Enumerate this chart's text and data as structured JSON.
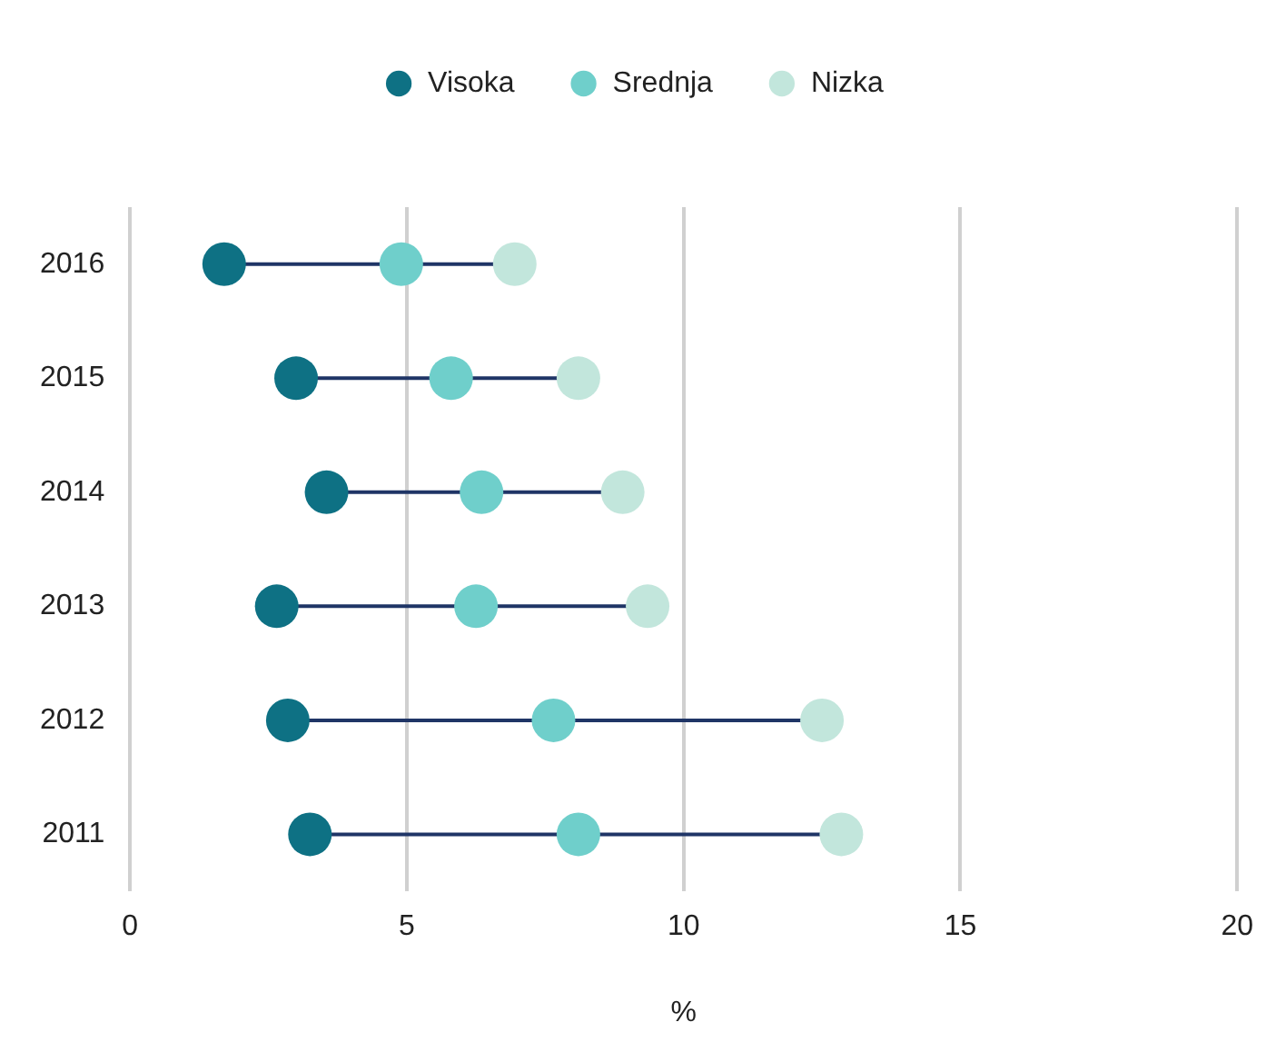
{
  "chart_data": {
    "type": "scatter",
    "orientation": "horizontal",
    "xlabel": "%",
    "categories": [
      "2016",
      "2015",
      "2014",
      "2013",
      "2012",
      "2011"
    ],
    "series": [
      {
        "name": "Visoka",
        "color": "#0e7184",
        "values": [
          1.7,
          3.0,
          3.55,
          2.65,
          2.85,
          3.25
        ]
      },
      {
        "name": "Srednja",
        "color": "#6fcfcb",
        "values": [
          4.9,
          5.8,
          6.35,
          6.25,
          7.65,
          8.1
        ]
      },
      {
        "name": "Nizka",
        "color": "#c2e6dc",
        "values": [
          6.95,
          8.1,
          8.9,
          9.35,
          12.5,
          12.85
        ]
      }
    ],
    "xlim": [
      0,
      20
    ],
    "xticks": [
      0,
      5,
      10,
      15,
      20
    ],
    "grid": "x",
    "legend": "top",
    "marker": "circle"
  }
}
